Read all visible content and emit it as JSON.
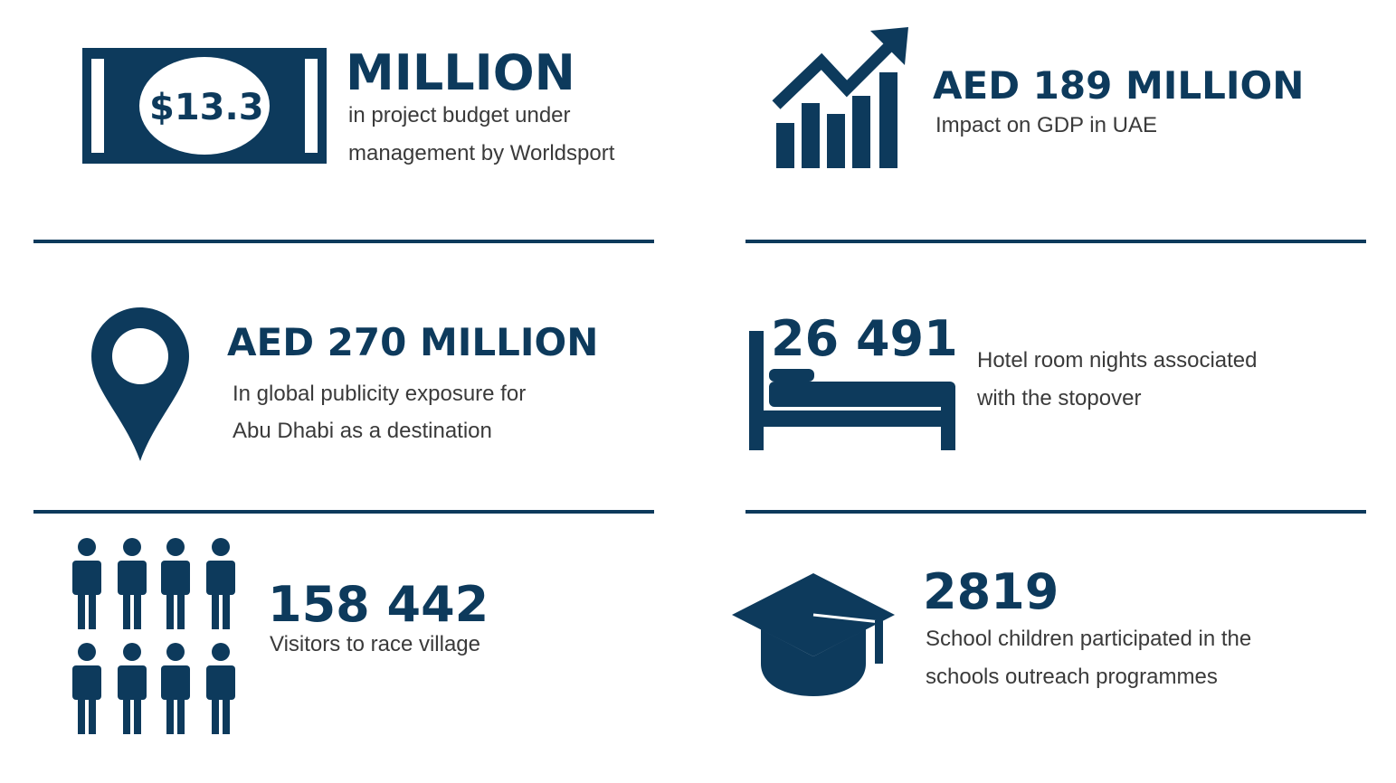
{
  "colors": {
    "primary": "#0d3a5c",
    "text": "#3a3a3a",
    "background": "#ffffff"
  },
  "stats": {
    "budget": {
      "icon": "money-bill-icon",
      "badge": "$13.3",
      "value": "MILLION",
      "line1": "in project budget under",
      "line2": "management by Worldsport"
    },
    "gdp": {
      "icon": "growth-chart-icon",
      "value": "AED 189 MILLION",
      "line1": "Impact on GDP in UAE"
    },
    "publicity": {
      "icon": "map-pin-icon",
      "value": "AED 270 MILLION",
      "line1": "In global publicity exposure for",
      "line2": "Abu Dhabi as a destination"
    },
    "hotel": {
      "icon": "bed-icon",
      "value": "26 491",
      "line1": "Hotel room nights associated",
      "line2": "with the stopover"
    },
    "visitors": {
      "icon": "people-icon",
      "value": "158 442",
      "line1": "Visitors to race village"
    },
    "schools": {
      "icon": "graduation-cap-icon",
      "value": "2819",
      "line1": "School children participated in the",
      "line2": "schools outreach programmes"
    }
  }
}
